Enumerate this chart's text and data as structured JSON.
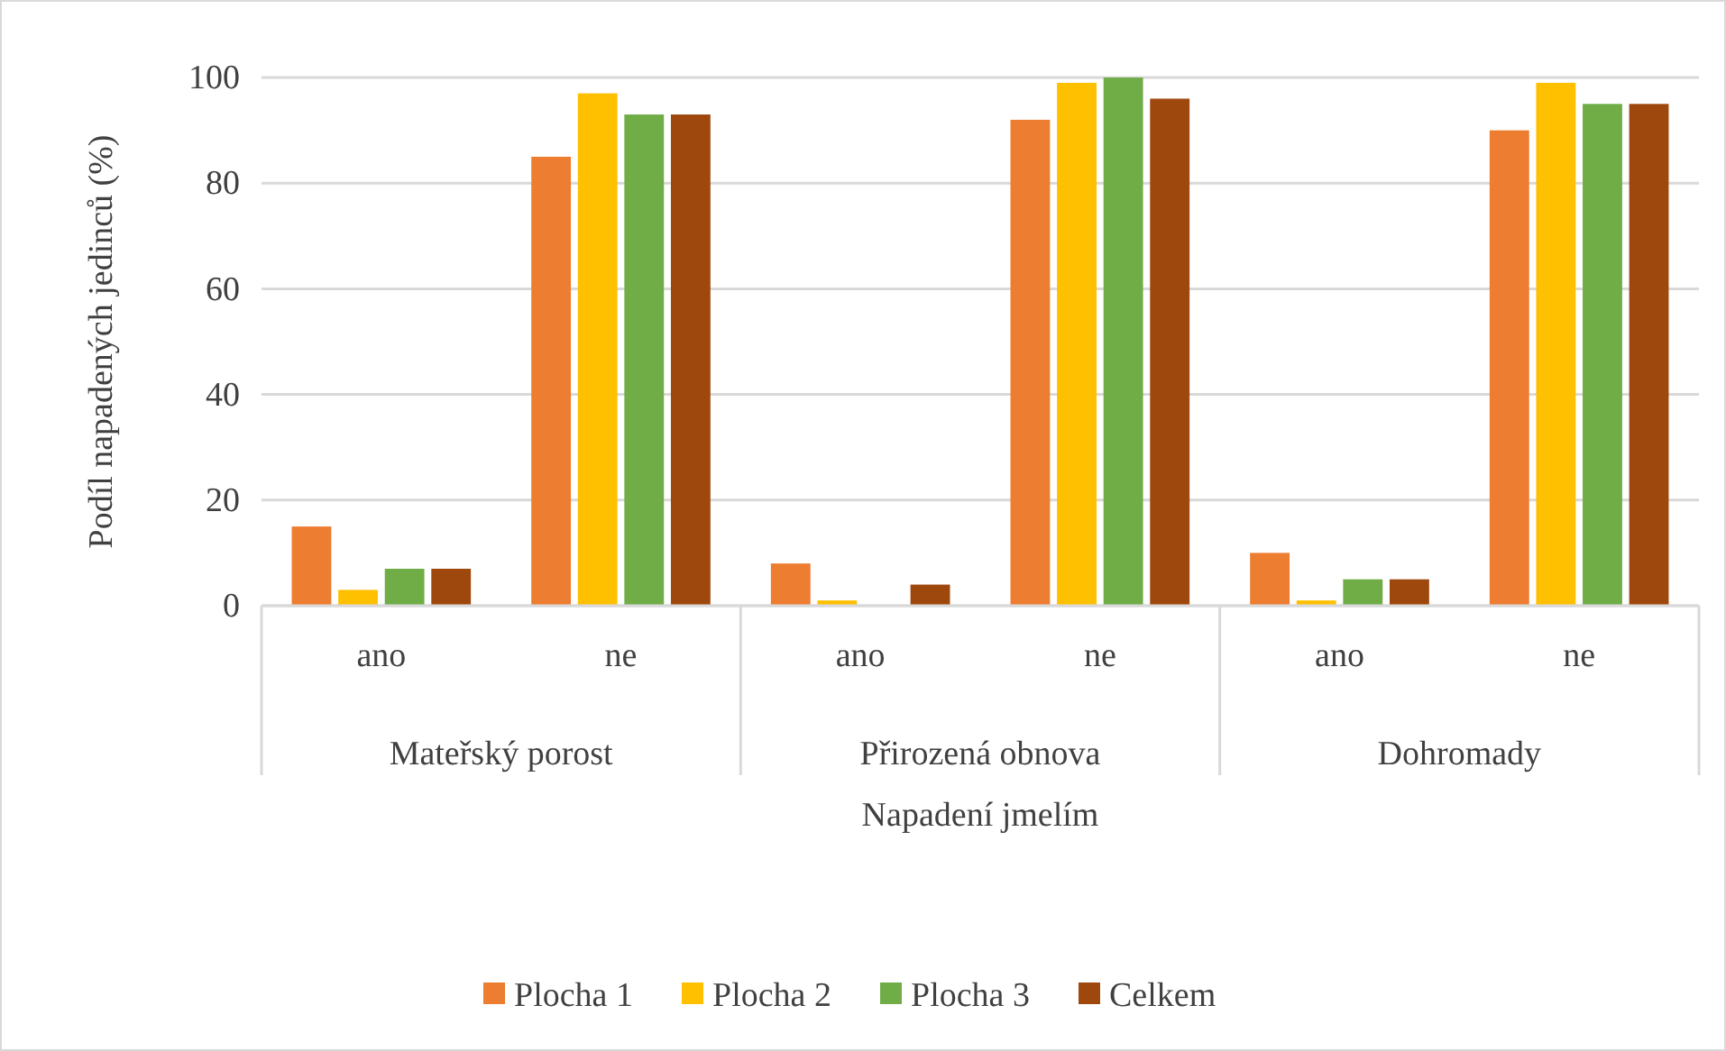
{
  "chart_data": {
    "type": "bar",
    "xlabel": "Napadení jmelím",
    "ylabel": "Podíl napadených jedinců (%)",
    "categories": [
      "ano",
      "ne",
      "ano",
      "ne",
      "ano",
      "ne"
    ],
    "series": [
      {
        "name": "Plocha 1",
        "color": "#ed7d31",
        "values": [
          15,
          85,
          8,
          92,
          10,
          90
        ]
      },
      {
        "name": "Plocha 2",
        "color": "#ffc000",
        "values": [
          3,
          97,
          1,
          99,
          1,
          99
        ]
      },
      {
        "name": "Plocha 3",
        "color": "#70ad47",
        "values": [
          7,
          93,
          0,
          100,
          5,
          95
        ]
      },
      {
        "name": "Celkem",
        "color": "#9e480e",
        "values": [
          7,
          93,
          4,
          96,
          5,
          95
        ]
      }
    ],
    "annotations": [
      "Mateřský porost",
      "Přirozená obnova",
      "Dohromady"
    ],
    "ylim": [
      0,
      100
    ],
    "yticks": [
      0,
      20,
      40,
      60,
      80,
      100
    ],
    "grid": "y",
    "legend": "bottom"
  }
}
